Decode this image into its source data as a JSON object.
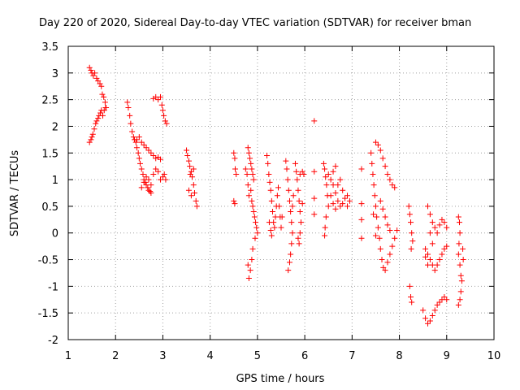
{
  "chart_data": {
    "type": "scatter",
    "title": "Day 220 of 2020, Sidereal Day-to-day VTEC variation (SDTVAR) for receiver bman",
    "xlabel": "GPS time / hours",
    "ylabel": "SDTVAR / TECUs",
    "xlim": [
      1,
      10
    ],
    "ylim": [
      -2,
      3.5
    ],
    "xticks": [
      "1",
      "2",
      "3",
      "4",
      "5",
      "6",
      "7",
      "8",
      "9",
      "10"
    ],
    "yticks": [
      "-2",
      "-1.5",
      "-1",
      "-0.5",
      "0",
      "0.5",
      "1",
      "1.5",
      "2",
      "2.5",
      "3",
      "3.5"
    ],
    "grid": true,
    "marker": "+",
    "series": [
      {
        "name": "SDTVAR",
        "color": "#ff0000",
        "points": [
          [
            1.45,
            3.1
          ],
          [
            1.48,
            3.05
          ],
          [
            1.5,
            3.0
          ],
          [
            1.53,
            2.95
          ],
          [
            1.56,
            3.0
          ],
          [
            1.6,
            2.9
          ],
          [
            1.63,
            2.85
          ],
          [
            1.67,
            2.8
          ],
          [
            1.7,
            2.75
          ],
          [
            1.72,
            2.6
          ],
          [
            1.75,
            2.55
          ],
          [
            1.78,
            2.45
          ],
          [
            1.8,
            2.35
          ],
          [
            1.45,
            1.7
          ],
          [
            1.48,
            1.75
          ],
          [
            1.5,
            1.8
          ],
          [
            1.52,
            1.85
          ],
          [
            1.55,
            1.95
          ],
          [
            1.58,
            2.05
          ],
          [
            1.6,
            2.1
          ],
          [
            1.63,
            2.15
          ],
          [
            1.65,
            2.2
          ],
          [
            1.68,
            2.25
          ],
          [
            1.7,
            2.3
          ],
          [
            1.73,
            2.2
          ],
          [
            1.76,
            2.3
          ],
          [
            1.79,
            2.35
          ],
          [
            2.25,
            2.45
          ],
          [
            2.27,
            2.35
          ],
          [
            2.3,
            2.2
          ],
          [
            2.32,
            2.05
          ],
          [
            2.35,
            1.9
          ],
          [
            2.38,
            1.8
          ],
          [
            2.4,
            1.75
          ],
          [
            2.43,
            1.7
          ],
          [
            2.45,
            1.6
          ],
          [
            2.48,
            1.5
          ],
          [
            2.5,
            1.4
          ],
          [
            2.52,
            1.3
          ],
          [
            2.55,
            1.2
          ],
          [
            2.58,
            1.1
          ],
          [
            2.6,
            1.0
          ],
          [
            2.63,
            0.95
          ],
          [
            2.65,
            0.9
          ],
          [
            2.68,
            0.85
          ],
          [
            2.7,
            0.8
          ],
          [
            2.73,
            0.78
          ],
          [
            2.75,
            0.75
          ],
          [
            2.45,
            1.75
          ],
          [
            2.5,
            1.8
          ],
          [
            2.55,
            1.7
          ],
          [
            2.6,
            1.65
          ],
          [
            2.65,
            1.6
          ],
          [
            2.7,
            1.55
          ],
          [
            2.75,
            1.5
          ],
          [
            2.8,
            1.45
          ],
          [
            2.85,
            1.4
          ],
          [
            2.9,
            1.42
          ],
          [
            2.95,
            1.38
          ],
          [
            2.55,
            0.85
          ],
          [
            2.6,
            0.95
          ],
          [
            2.65,
            1.05
          ],
          [
            2.7,
            1.0
          ],
          [
            2.75,
            0.9
          ],
          [
            2.8,
            1.1
          ],
          [
            2.85,
            1.2
          ],
          [
            2.9,
            1.15
          ],
          [
            2.95,
            1.0
          ],
          [
            3.0,
            1.05
          ],
          [
            3.03,
            1.1
          ],
          [
            3.06,
            1.0
          ],
          [
            2.8,
            2.52
          ],
          [
            2.85,
            2.55
          ],
          [
            2.9,
            2.5
          ],
          [
            2.95,
            2.55
          ],
          [
            2.98,
            2.4
          ],
          [
            3.0,
            2.3
          ],
          [
            3.02,
            2.2
          ],
          [
            3.05,
            2.1
          ],
          [
            3.08,
            2.05
          ],
          [
            3.5,
            1.55
          ],
          [
            3.52,
            1.45
          ],
          [
            3.55,
            1.35
          ],
          [
            3.57,
            1.25
          ],
          [
            3.6,
            1.15
          ],
          [
            3.62,
            1.05
          ],
          [
            3.65,
            0.9
          ],
          [
            3.67,
            0.75
          ],
          [
            3.7,
            0.6
          ],
          [
            3.72,
            0.5
          ],
          [
            3.55,
            0.8
          ],
          [
            3.6,
            0.7
          ],
          [
            3.65,
            1.2
          ],
          [
            3.58,
            1.1
          ],
          [
            4.5,
            1.5
          ],
          [
            4.52,
            1.4
          ],
          [
            4.53,
            1.2
          ],
          [
            4.55,
            1.1
          ],
          [
            4.5,
            0.6
          ],
          [
            4.52,
            0.55
          ],
          [
            4.8,
            1.6
          ],
          [
            4.82,
            1.5
          ],
          [
            4.84,
            1.4
          ],
          [
            4.86,
            1.3
          ],
          [
            4.88,
            1.2
          ],
          [
            4.9,
            1.1
          ],
          [
            4.92,
            1.0
          ],
          [
            4.86,
            0.8
          ],
          [
            4.88,
            0.6
          ],
          [
            4.9,
            0.5
          ],
          [
            4.92,
            0.4
          ],
          [
            4.94,
            0.3
          ],
          [
            4.96,
            0.2
          ],
          [
            4.98,
            0.1
          ],
          [
            5.0,
            0.0
          ],
          [
            4.95,
            -0.1
          ],
          [
            4.9,
            -0.3
          ],
          [
            4.88,
            -0.5
          ],
          [
            4.85,
            -0.7
          ],
          [
            4.82,
            -0.85
          ],
          [
            4.8,
            -0.6
          ],
          [
            4.75,
            1.2
          ],
          [
            4.78,
            1.1
          ],
          [
            4.8,
            0.9
          ],
          [
            4.82,
            0.7
          ],
          [
            5.2,
            1.45
          ],
          [
            5.22,
            1.3
          ],
          [
            5.24,
            1.1
          ],
          [
            5.26,
            0.95
          ],
          [
            5.28,
            0.8
          ],
          [
            5.3,
            0.6
          ],
          [
            5.32,
            0.4
          ],
          [
            5.34,
            0.2
          ],
          [
            5.36,
            0.1
          ],
          [
            5.38,
            0.3
          ],
          [
            5.4,
            0.5
          ],
          [
            5.42,
            0.7
          ],
          [
            5.44,
            0.85
          ],
          [
            5.46,
            0.5
          ],
          [
            5.48,
            0.3
          ],
          [
            5.5,
            0.1
          ],
          [
            5.52,
            0.3
          ],
          [
            5.25,
            0.2
          ],
          [
            5.28,
            0.05
          ],
          [
            5.3,
            -0.05
          ],
          [
            5.6,
            1.35
          ],
          [
            5.62,
            1.2
          ],
          [
            5.64,
            1.0
          ],
          [
            5.66,
            0.8
          ],
          [
            5.68,
            0.6
          ],
          [
            5.7,
            0.4
          ],
          [
            5.72,
            0.2
          ],
          [
            5.74,
            0.0
          ],
          [
            5.72,
            -0.2
          ],
          [
            5.7,
            -0.4
          ],
          [
            5.68,
            -0.55
          ],
          [
            5.65,
            -0.7
          ],
          [
            5.74,
            0.5
          ],
          [
            5.76,
            0.7
          ],
          [
            5.8,
            1.3
          ],
          [
            5.82,
            1.15
          ],
          [
            5.84,
            1.0
          ],
          [
            5.86,
            0.8
          ],
          [
            5.88,
            0.6
          ],
          [
            5.9,
            0.4
          ],
          [
            5.92,
            0.2
          ],
          [
            5.9,
            0.0
          ],
          [
            5.88,
            -0.2
          ],
          [
            5.86,
            -0.1
          ],
          [
            5.9,
            1.1
          ],
          [
            5.95,
            1.15
          ],
          [
            5.98,
            1.1
          ],
          [
            5.95,
            0.55
          ],
          [
            6.2,
            2.1
          ],
          [
            6.2,
            1.15
          ],
          [
            6.2,
            0.65
          ],
          [
            6.2,
            0.35
          ],
          [
            6.4,
            1.3
          ],
          [
            6.42,
            1.2
          ],
          [
            6.44,
            1.05
          ],
          [
            6.46,
            0.9
          ],
          [
            6.48,
            0.7
          ],
          [
            6.5,
            0.5
          ],
          [
            6.45,
            0.3
          ],
          [
            6.43,
            0.1
          ],
          [
            6.42,
            -0.05
          ],
          [
            6.5,
            1.1
          ],
          [
            6.55,
            1.0
          ],
          [
            6.6,
            0.9
          ],
          [
            6.65,
            0.75
          ],
          [
            6.7,
            0.6
          ],
          [
            6.75,
            0.5
          ],
          [
            6.8,
            0.55
          ],
          [
            6.85,
            0.65
          ],
          [
            6.9,
            0.7
          ],
          [
            6.95,
            0.6
          ],
          [
            6.55,
            0.7
          ],
          [
            6.6,
            0.55
          ],
          [
            6.65,
            0.45
          ],
          [
            6.7,
            0.9
          ],
          [
            6.75,
            1.0
          ],
          [
            6.6,
            1.15
          ],
          [
            6.65,
            1.25
          ],
          [
            6.8,
            0.8
          ],
          [
            6.9,
            0.5
          ],
          [
            7.2,
            1.2
          ],
          [
            7.2,
            0.55
          ],
          [
            7.2,
            0.25
          ],
          [
            7.2,
            -0.1
          ],
          [
            7.4,
            1.5
          ],
          [
            7.42,
            1.3
          ],
          [
            7.44,
            1.1
          ],
          [
            7.46,
            0.9
          ],
          [
            7.48,
            0.7
          ],
          [
            7.5,
            0.5
          ],
          [
            7.52,
            0.3
          ],
          [
            7.55,
            0.1
          ],
          [
            7.58,
            -0.1
          ],
          [
            7.6,
            -0.3
          ],
          [
            7.63,
            -0.5
          ],
          [
            7.66,
            -0.65
          ],
          [
            7.7,
            -0.7
          ],
          [
            7.75,
            -0.55
          ],
          [
            7.8,
            -0.4
          ],
          [
            7.85,
            -0.25
          ],
          [
            7.9,
            -0.1
          ],
          [
            7.95,
            0.05
          ],
          [
            7.5,
            1.7
          ],
          [
            7.55,
            1.65
          ],
          [
            7.6,
            1.55
          ],
          [
            7.65,
            1.4
          ],
          [
            7.7,
            1.25
          ],
          [
            7.75,
            1.1
          ],
          [
            7.8,
            1.0
          ],
          [
            7.85,
            0.9
          ],
          [
            7.9,
            0.85
          ],
          [
            7.6,
            0.6
          ],
          [
            7.65,
            0.45
          ],
          [
            7.7,
            0.3
          ],
          [
            7.75,
            0.15
          ],
          [
            7.8,
            0.05
          ],
          [
            7.5,
            -0.05
          ],
          [
            7.45,
            0.35
          ],
          [
            8.2,
            0.5
          ],
          [
            8.22,
            0.35
          ],
          [
            8.24,
            0.2
          ],
          [
            8.26,
            0.0
          ],
          [
            8.28,
            -0.15
          ],
          [
            8.25,
            -0.3
          ],
          [
            8.22,
            -1.0
          ],
          [
            8.24,
            -1.2
          ],
          [
            8.26,
            -1.3
          ],
          [
            8.5,
            -1.45
          ],
          [
            8.55,
            -1.6
          ],
          [
            8.6,
            -1.7
          ],
          [
            8.65,
            -1.65
          ],
          [
            8.7,
            -1.55
          ],
          [
            8.75,
            -1.45
          ],
          [
            8.8,
            -1.35
          ],
          [
            8.85,
            -1.3
          ],
          [
            8.9,
            -1.25
          ],
          [
            8.95,
            -1.2
          ],
          [
            9.0,
            -1.25
          ],
          [
            8.55,
            -0.3
          ],
          [
            8.6,
            -0.4
          ],
          [
            8.65,
            -0.5
          ],
          [
            8.7,
            -0.6
          ],
          [
            8.75,
            -0.7
          ],
          [
            8.8,
            -0.6
          ],
          [
            8.85,
            -0.5
          ],
          [
            8.9,
            -0.4
          ],
          [
            8.95,
            -0.3
          ],
          [
            9.0,
            -0.25
          ],
          [
            8.6,
            0.5
          ],
          [
            8.65,
            0.35
          ],
          [
            8.7,
            0.2
          ],
          [
            8.75,
            0.1
          ],
          [
            8.8,
            0.0
          ],
          [
            8.85,
            0.15
          ],
          [
            8.9,
            0.25
          ],
          [
            8.95,
            0.2
          ],
          [
            9.0,
            0.1
          ],
          [
            8.65,
            0.0
          ],
          [
            8.7,
            -0.2
          ],
          [
            8.6,
            -0.6
          ],
          [
            8.55,
            -0.45
          ],
          [
            9.25,
            0.3
          ],
          [
            9.27,
            0.2
          ],
          [
            9.28,
            0.0
          ],
          [
            9.26,
            -0.2
          ],
          [
            9.25,
            -0.4
          ],
          [
            9.28,
            -0.6
          ],
          [
            9.3,
            -0.8
          ],
          [
            9.32,
            -0.9
          ],
          [
            9.3,
            -1.1
          ],
          [
            9.28,
            -1.25
          ],
          [
            9.25,
            -1.35
          ],
          [
            9.35,
            -0.5
          ],
          [
            9.34,
            -0.3
          ]
        ]
      }
    ]
  }
}
